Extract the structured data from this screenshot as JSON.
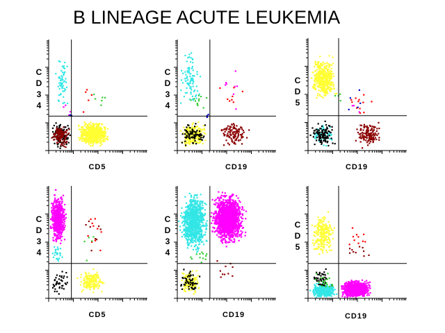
{
  "title": "B LINEAGE ACUTE LEUKEMIA",
  "colors": {
    "cyan": "#33e6e6",
    "yellow": "#ffff33",
    "black": "#000000",
    "maroon": "#8b0000",
    "green": "#33cc33",
    "red": "#ff0000",
    "magenta": "#ff00ff",
    "blue": "#0000cc",
    "axis": "#000000"
  },
  "chart_data": [
    {
      "type": "scatter",
      "xlabel": "CD5",
      "ylabel": [
        "C",
        "D",
        "3",
        "4"
      ],
      "xlim": [
        0,
        1
      ],
      "ylim": [
        0,
        1
      ],
      "gate": {
        "x": 0.23,
        "y": 0.31
      },
      "clusters": [
        {
          "color": "cyan",
          "n": 60,
          "cx": [
            0.03,
            0.22
          ],
          "cy": [
            0.35,
            0.88
          ]
        },
        {
          "color": "black",
          "n": 130,
          "cx": [
            0.01,
            0.22
          ],
          "cy": [
            0.02,
            0.28
          ]
        },
        {
          "color": "maroon",
          "n": 110,
          "cx": [
            0.01,
            0.22
          ],
          "cy": [
            0.02,
            0.26
          ]
        },
        {
          "color": "yellow",
          "n": 650,
          "cx": [
            0.27,
            0.62
          ],
          "cy": [
            0.03,
            0.28
          ]
        },
        {
          "color": "green",
          "n": 6,
          "cx": [
            0.4,
            0.58
          ],
          "cy": [
            0.38,
            0.55
          ]
        },
        {
          "color": "red",
          "n": 5,
          "cx": [
            0.28,
            0.5
          ],
          "cy": [
            0.32,
            0.58
          ]
        },
        {
          "color": "magenta",
          "n": 4,
          "cx": [
            0.1,
            0.25
          ],
          "cy": [
            0.3,
            0.45
          ]
        },
        {
          "color": "blue",
          "n": 3,
          "cx": [
            0.18,
            0.25
          ],
          "cy": [
            0.28,
            0.35
          ]
        }
      ]
    },
    {
      "type": "scatter",
      "xlabel": "CD19",
      "ylabel": [
        "C",
        "D",
        "3",
        "4"
      ],
      "xlim": [
        0,
        1
      ],
      "ylim": [
        0,
        1
      ],
      "gate": {
        "x": 0.33,
        "y": 0.31
      },
      "clusters": [
        {
          "color": "cyan",
          "n": 90,
          "cx": [
            0.0,
            0.25
          ],
          "cy": [
            0.35,
            0.95
          ]
        },
        {
          "color": "green",
          "n": 12,
          "cx": [
            0.05,
            0.35
          ],
          "cy": [
            0.35,
            0.55
          ]
        },
        {
          "color": "yellow",
          "n": 220,
          "cx": [
            0.0,
            0.3
          ],
          "cy": [
            0.02,
            0.28
          ]
        },
        {
          "color": "black",
          "n": 80,
          "cx": [
            0.0,
            0.3
          ],
          "cy": [
            0.02,
            0.28
          ]
        },
        {
          "color": "maroon",
          "n": 110,
          "cx": [
            0.4,
            0.75
          ],
          "cy": [
            0.03,
            0.28
          ]
        },
        {
          "color": "magenta",
          "n": 8,
          "cx": [
            0.4,
            0.65
          ],
          "cy": [
            0.3,
            0.85
          ]
        },
        {
          "color": "red",
          "n": 8,
          "cx": [
            0.35,
            0.75
          ],
          "cy": [
            0.3,
            0.65
          ]
        },
        {
          "color": "blue",
          "n": 3,
          "cx": [
            0.25,
            0.35
          ],
          "cy": [
            0.28,
            0.35
          ]
        }
      ]
    },
    {
      "type": "scatter",
      "xlabel": "CD19",
      "ylabel": [
        "C",
        "D",
        "5"
      ],
      "xlim": [
        0,
        1
      ],
      "ylim": [
        0,
        1
      ],
      "gate": {
        "x": 0.31,
        "y": 0.31
      },
      "clusters": [
        {
          "color": "yellow",
          "n": 400,
          "cx": [
            0.0,
            0.3
          ],
          "cy": [
            0.42,
            0.88
          ]
        },
        {
          "color": "cyan",
          "n": 70,
          "cx": [
            0.0,
            0.28
          ],
          "cy": [
            0.02,
            0.28
          ]
        },
        {
          "color": "black",
          "n": 110,
          "cx": [
            0.0,
            0.28
          ],
          "cy": [
            0.02,
            0.28
          ]
        },
        {
          "color": "maroon",
          "n": 140,
          "cx": [
            0.45,
            0.75
          ],
          "cy": [
            0.02,
            0.28
          ]
        },
        {
          "color": "red",
          "n": 12,
          "cx": [
            0.32,
            0.7
          ],
          "cy": [
            0.3,
            0.55
          ]
        },
        {
          "color": "blue",
          "n": 5,
          "cx": [
            0.35,
            0.62
          ],
          "cy": [
            0.3,
            0.6
          ]
        },
        {
          "color": "green",
          "n": 4,
          "cx": [
            0.25,
            0.35
          ],
          "cy": [
            0.4,
            0.55
          ]
        },
        {
          "color": "magenta",
          "n": 3,
          "cx": [
            0.4,
            0.6
          ],
          "cy": [
            0.3,
            0.45
          ]
        }
      ]
    },
    {
      "type": "scatter",
      "xlabel": "CD5",
      "ylabel": [
        "C",
        "D",
        "3",
        "4"
      ],
      "xlim": [
        0,
        1
      ],
      "ylim": [
        0,
        1
      ],
      "gate": {
        "x": 0.23,
        "y": 0.31
      },
      "clusters": [
        {
          "color": "magenta",
          "n": 550,
          "cx": [
            0.0,
            0.18
          ],
          "cy": [
            0.45,
            0.98
          ]
        },
        {
          "color": "cyan",
          "n": 25,
          "cx": [
            0.0,
            0.15
          ],
          "cy": [
            0.3,
            0.5
          ]
        },
        {
          "color": "black",
          "n": 45,
          "cx": [
            0.0,
            0.22
          ],
          "cy": [
            0.03,
            0.28
          ]
        },
        {
          "color": "yellow",
          "n": 160,
          "cx": [
            0.27,
            0.58
          ],
          "cy": [
            0.03,
            0.28
          ]
        },
        {
          "color": "red",
          "n": 10,
          "cx": [
            0.3,
            0.6
          ],
          "cy": [
            0.35,
            0.8
          ]
        },
        {
          "color": "maroon",
          "n": 8,
          "cx": [
            0.3,
            0.6
          ],
          "cy": [
            0.35,
            0.8
          ]
        },
        {
          "color": "green",
          "n": 5,
          "cx": [
            0.3,
            0.5
          ],
          "cy": [
            0.3,
            0.7
          ]
        }
      ]
    },
    {
      "type": "scatter",
      "xlabel": "CD19",
      "ylabel": [
        "C",
        "D",
        "3",
        "4"
      ],
      "xlim": [
        0,
        1
      ],
      "ylim": [
        0,
        1
      ],
      "gate": {
        "x": 0.33,
        "y": 0.31
      },
      "clusters": [
        {
          "color": "cyan",
          "n": 900,
          "cx": [
            0.0,
            0.32
          ],
          "cy": [
            0.4,
            0.98
          ]
        },
        {
          "color": "magenta",
          "n": 1400,
          "cx": [
            0.32,
            0.7
          ],
          "cy": [
            0.45,
            0.98
          ]
        },
        {
          "color": "yellow",
          "n": 130,
          "cx": [
            0.0,
            0.25
          ],
          "cy": [
            0.02,
            0.28
          ]
        },
        {
          "color": "black",
          "n": 50,
          "cx": [
            0.0,
            0.25
          ],
          "cy": [
            0.02,
            0.28
          ]
        },
        {
          "color": "maroon",
          "n": 10,
          "cx": [
            0.35,
            0.6
          ],
          "cy": [
            0.1,
            0.4
          ]
        },
        {
          "color": "green",
          "n": 12,
          "cx": [
            0.1,
            0.35
          ],
          "cy": [
            0.3,
            0.45
          ]
        }
      ]
    },
    {
      "type": "scatter",
      "xlabel": "CD19",
      "ylabel": [
        "C",
        "D",
        "5"
      ],
      "xlim": [
        0,
        1
      ],
      "ylim": [
        0,
        1
      ],
      "gate": {
        "x": 0.31,
        "y": 0.31
      },
      "clusters": [
        {
          "color": "yellow",
          "n": 220,
          "cx": [
            0.0,
            0.28
          ],
          "cy": [
            0.35,
            0.8
          ]
        },
        {
          "color": "cyan",
          "n": 350,
          "cx": [
            0.0,
            0.3
          ],
          "cy": [
            0.0,
            0.15
          ]
        },
        {
          "color": "magenta",
          "n": 900,
          "cx": [
            0.3,
            0.65
          ],
          "cy": [
            0.0,
            0.18
          ]
        },
        {
          "color": "black",
          "n": 45,
          "cx": [
            0.0,
            0.25
          ],
          "cy": [
            0.08,
            0.28
          ]
        },
        {
          "color": "green",
          "n": 20,
          "cx": [
            0.02,
            0.28
          ],
          "cy": [
            0.05,
            0.28
          ]
        },
        {
          "color": "red",
          "n": 10,
          "cx": [
            0.35,
            0.65
          ],
          "cy": [
            0.4,
            0.7
          ]
        },
        {
          "color": "maroon",
          "n": 10,
          "cx": [
            0.35,
            0.65
          ],
          "cy": [
            0.3,
            0.6
          ]
        }
      ]
    }
  ]
}
